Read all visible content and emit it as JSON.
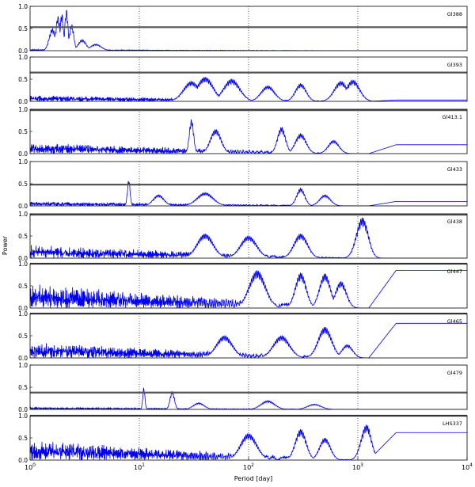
{
  "chart_data": {
    "type": "line",
    "xlabel": "Period [day]",
    "ylabel": "Power",
    "xscale": "log",
    "xlim": [
      1,
      10000
    ],
    "ylim": [
      0,
      1
    ],
    "x_ticks": [
      {
        "value": 1,
        "base": "10",
        "exp": "0"
      },
      {
        "value": 10,
        "base": "10",
        "exp": "1"
      },
      {
        "value": 100,
        "base": "10",
        "exp": "2"
      },
      {
        "value": 1000,
        "base": "10",
        "exp": "3"
      },
      {
        "value": 10000,
        "base": "10",
        "exp": "4"
      }
    ],
    "y_ticks": [
      "0.0",
      "0.5",
      "1.0"
    ],
    "grid": "dotted vertical at decades",
    "line_color": "#0000ee",
    "threshold_color": "#555555",
    "panels": [
      {
        "name": "Gl388",
        "threshold": 0.53,
        "noise": 0.03,
        "peaks": [
          [
            1.6,
            0.5,
            0.12
          ],
          [
            1.8,
            0.78,
            0.08
          ],
          [
            1.95,
            0.85,
            0.06
          ],
          [
            2.15,
            0.93,
            0.06
          ],
          [
            2.4,
            0.6,
            0.08
          ],
          [
            3.0,
            0.25,
            0.15
          ],
          [
            4.0,
            0.15,
            0.2
          ]
        ],
        "tail": 0.0
      },
      {
        "name": "Gl393",
        "threshold": 0.65,
        "noise": 0.14,
        "peaks": [
          [
            30,
            0.45,
            0.3
          ],
          [
            40,
            0.55,
            0.3
          ],
          [
            70,
            0.5,
            0.3
          ],
          [
            150,
            0.35,
            0.25
          ],
          [
            300,
            0.4,
            0.2
          ],
          [
            700,
            0.45,
            0.25
          ],
          [
            900,
            0.48,
            0.25
          ]
        ],
        "tail": 0.03
      },
      {
        "name": "Gl413.1",
        "threshold": 0.98,
        "noise": 0.25,
        "peaks": [
          [
            30,
            0.78,
            0.08
          ],
          [
            50,
            0.55,
            0.2
          ],
          [
            200,
            0.6,
            0.15
          ],
          [
            300,
            0.45,
            0.2
          ],
          [
            600,
            0.3,
            0.2
          ]
        ],
        "tail": 0.2
      },
      {
        "name": "Gl433",
        "threshold": 0.48,
        "noise": 0.1,
        "peaks": [
          [
            8,
            0.6,
            0.05
          ],
          [
            15,
            0.25,
            0.2
          ],
          [
            40,
            0.3,
            0.3
          ],
          [
            300,
            0.4,
            0.15
          ],
          [
            500,
            0.25,
            0.2
          ]
        ],
        "tail": 0.1
      },
      {
        "name": "Gl438",
        "threshold": 0.98,
        "noise": 0.3,
        "peaks": [
          [
            40,
            0.55,
            0.3
          ],
          [
            100,
            0.5,
            0.3
          ],
          [
            300,
            0.55,
            0.25
          ],
          [
            1100,
            0.92,
            0.22
          ]
        ],
        "tail": 0.0
      },
      {
        "name": "Gl447",
        "threshold": 1.0,
        "noise": 0.55,
        "peaks": [
          [
            120,
            0.85,
            0.3
          ],
          [
            300,
            0.8,
            0.2
          ],
          [
            500,
            0.78,
            0.2
          ],
          [
            700,
            0.6,
            0.2
          ]
        ],
        "tail": 0.85
      },
      {
        "name": "Gl465",
        "threshold": 1.0,
        "noise": 0.35,
        "peaks": [
          [
            60,
            0.5,
            0.3
          ],
          [
            200,
            0.5,
            0.3
          ],
          [
            500,
            0.7,
            0.25
          ],
          [
            800,
            0.3,
            0.2
          ]
        ],
        "tail": 0.78
      },
      {
        "name": "Gl479",
        "threshold": 0.38,
        "noise": 0.05,
        "peaks": [
          [
            11,
            0.5,
            0.04
          ],
          [
            20,
            0.42,
            0.08
          ],
          [
            35,
            0.15,
            0.2
          ],
          [
            150,
            0.2,
            0.25
          ],
          [
            400,
            0.12,
            0.25
          ]
        ],
        "tail": 0.0
      },
      {
        "name": "LHS337",
        "threshold": 1.0,
        "noise": 0.45,
        "peaks": [
          [
            100,
            0.6,
            0.3
          ],
          [
            300,
            0.7,
            0.2
          ],
          [
            500,
            0.5,
            0.2
          ],
          [
            1200,
            0.8,
            0.2
          ]
        ],
        "tail": 0.62
      }
    ]
  }
}
